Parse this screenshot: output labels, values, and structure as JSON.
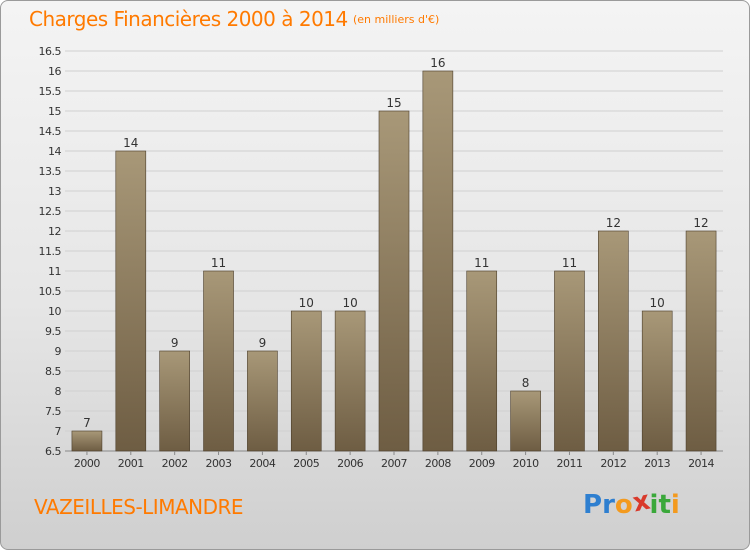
{
  "header": {
    "title": "Charges Financières 2000 à 2014",
    "unit": "(en milliers d'€)"
  },
  "footer": {
    "commune": "VAZEILLES-LIMANDRE",
    "logo_letters": [
      {
        "char": "P",
        "color": "#2e7fd0"
      },
      {
        "char": "r",
        "color": "#2e7fd0"
      },
      {
        "char": "o",
        "color": "#f39a1e"
      },
      {
        "char": "x",
        "color": "#d93a2b"
      },
      {
        "char": "i",
        "color": "#3aa83a"
      },
      {
        "char": "t",
        "color": "#3aa83a"
      },
      {
        "char": "i",
        "color": "#f39a1e"
      }
    ]
  },
  "chart_data": {
    "type": "bar",
    "title": "Charges Financières 2000 à 2014",
    "unit": "(en milliers d'€)",
    "categories": [
      "2000",
      "2001",
      "2002",
      "2003",
      "2004",
      "2005",
      "2006",
      "2007",
      "2008",
      "2009",
      "2010",
      "2011",
      "2012",
      "2013",
      "2014"
    ],
    "values": [
      7,
      14,
      9,
      11,
      9,
      10,
      10,
      15,
      16,
      11,
      8,
      11,
      12,
      10,
      12
    ],
    "ylim": [
      6.5,
      16.5
    ],
    "yticks": [
      "6.5",
      "7",
      "7.5",
      "8",
      "8.5",
      "9",
      "9.5",
      "10",
      "10.5",
      "11",
      "11.5",
      "12",
      "12.5",
      "13",
      "13.5",
      "14",
      "14.5",
      "15",
      "15.5",
      "16",
      "16.5"
    ],
    "grid": true,
    "bar_color_top": "#a89878",
    "bar_color_bottom": "#6e5d43",
    "accent_color": "#ff7a00"
  }
}
